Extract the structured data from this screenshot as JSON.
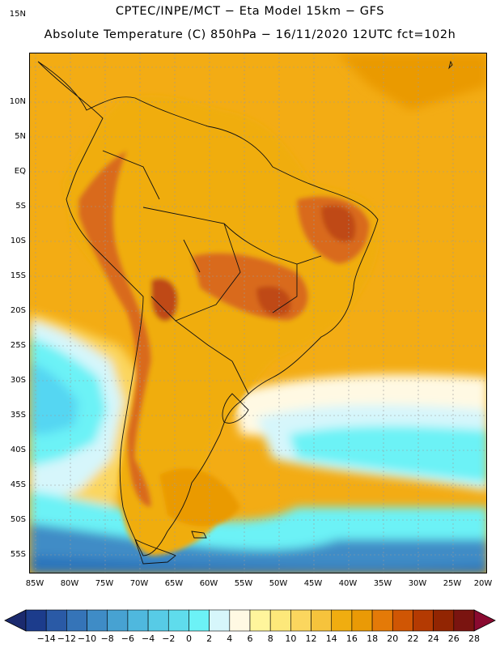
{
  "title_line1": "CPTEC/INPE/MCT −   Eta Model 15km − GFS",
  "title_line2": "Absolute Temperature (C) 850hPa − 16/11/2020 12UTC fct=102h",
  "lat_labels": [
    "15N",
    "10N",
    "5N",
    "EQ",
    "5S",
    "10S",
    "15S",
    "20S",
    "25S",
    "30S",
    "35S",
    "40S",
    "45S",
    "50S",
    "55S"
  ],
  "lon_labels": [
    "85W",
    "80W",
    "75W",
    "70W",
    "65W",
    "60W",
    "55W",
    "50W",
    "45W",
    "40W",
    "35W",
    "30W",
    "25W",
    "20W"
  ],
  "colorbar": {
    "labels": [
      "−14",
      "−12",
      "−10",
      "−8",
      "−6",
      "−4",
      "−2",
      "0",
      "2",
      "4",
      "6",
      "8",
      "10",
      "12",
      "14",
      "16",
      "18",
      "20",
      "22",
      "24",
      "26",
      "28"
    ],
    "colors": [
      "#1c3c8c",
      "#2a5aa6",
      "#3574b8",
      "#3f8cc6",
      "#47a2d2",
      "#4fb8de",
      "#57cbe6",
      "#5fdcec",
      "#6cf2f6",
      "#d6f6fb",
      "#fff9e3",
      "#fff59c",
      "#fde87a",
      "#fbd65e",
      "#f6c33c",
      "#f0ad10",
      "#ea9a06",
      "#e47a08",
      "#d05604",
      "#b43a02",
      "#922502",
      "#7a1410"
    ],
    "arrow_left_color": "#1b2a6e",
    "arrow_right_color": "#8a0a30"
  },
  "colors": {
    "ocean_warm": "#f3ac14",
    "land_hot": "#d96a1c",
    "land_very_hot": "#bf4a12",
    "ocean_cool": "#54d6f2",
    "ocean_cold": "#2c74bc",
    "ocean_very_cold": "#1c3c8c"
  }
}
